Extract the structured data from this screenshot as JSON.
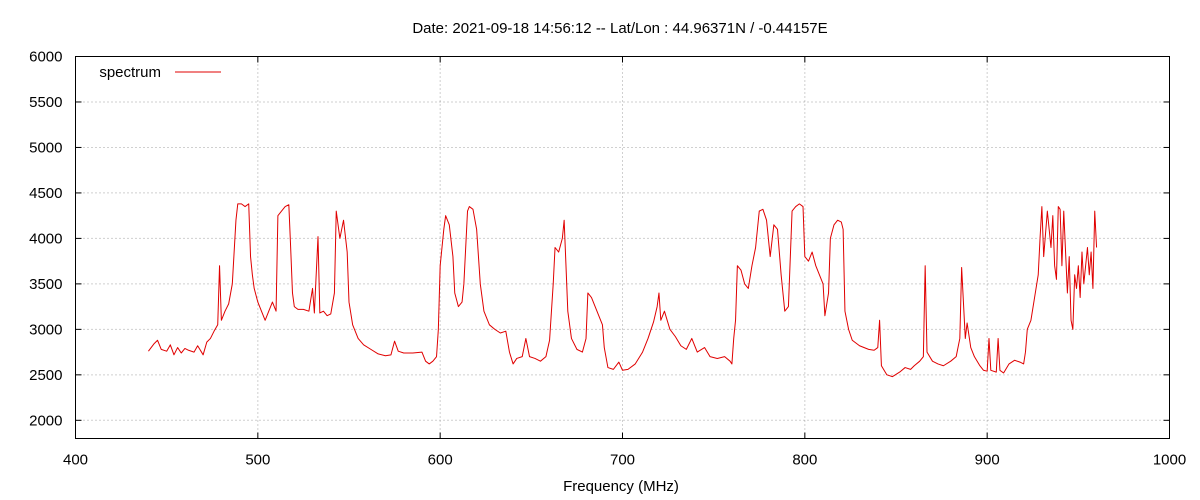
{
  "chart_data": {
    "type": "line",
    "title": "Date: 2021-09-18 14:56:12  --  Lat/Lon : 44.96371N / -0.44157E",
    "xlabel": "Frequency (MHz)",
    "ylabel": "",
    "xlim": [
      400,
      1000
    ],
    "ylim": [
      1800,
      6000
    ],
    "x_ticks": [
      400,
      500,
      600,
      700,
      800,
      900,
      1000
    ],
    "y_ticks": [
      2000,
      2500,
      3000,
      3500,
      4000,
      4500,
      5000,
      5500,
      6000
    ],
    "grid": true,
    "legend_position": "top-left",
    "series": [
      {
        "name": "spectrum",
        "color": "#e00000",
        "points": [
          [
            440,
            2760
          ],
          [
            443,
            2840
          ],
          [
            445,
            2880
          ],
          [
            447,
            2780
          ],
          [
            450,
            2760
          ],
          [
            452,
            2830
          ],
          [
            454,
            2720
          ],
          [
            456,
            2800
          ],
          [
            458,
            2740
          ],
          [
            460,
            2790
          ],
          [
            462,
            2770
          ],
          [
            465,
            2750
          ],
          [
            467,
            2820
          ],
          [
            470,
            2720
          ],
          [
            472,
            2860
          ],
          [
            474,
            2900
          ],
          [
            476,
            2980
          ],
          [
            478,
            3050
          ],
          [
            479,
            3700
          ],
          [
            480,
            3100
          ],
          [
            482,
            3200
          ],
          [
            484,
            3280
          ],
          [
            486,
            3500
          ],
          [
            488,
            4200
          ],
          [
            489,
            4380
          ],
          [
            491,
            4380
          ],
          [
            493,
            4350
          ],
          [
            495,
            4380
          ],
          [
            496,
            3800
          ],
          [
            497,
            3600
          ],
          [
            498,
            3450
          ],
          [
            500,
            3300
          ],
          [
            502,
            3200
          ],
          [
            504,
            3100
          ],
          [
            506,
            3200
          ],
          [
            508,
            3300
          ],
          [
            510,
            3200
          ],
          [
            511,
            4250
          ],
          [
            513,
            4300
          ],
          [
            515,
            4350
          ],
          [
            517,
            4370
          ],
          [
            518,
            3900
          ],
          [
            519,
            3400
          ],
          [
            520,
            3250
          ],
          [
            522,
            3220
          ],
          [
            525,
            3220
          ],
          [
            528,
            3200
          ],
          [
            530,
            3450
          ],
          [
            531,
            3180
          ],
          [
            533,
            4020
          ],
          [
            534,
            3180
          ],
          [
            536,
            3200
          ],
          [
            538,
            3150
          ],
          [
            540,
            3170
          ],
          [
            542,
            3400
          ],
          [
            543,
            4300
          ],
          [
            545,
            4000
          ],
          [
            547,
            4200
          ],
          [
            549,
            3850
          ],
          [
            550,
            3300
          ],
          [
            552,
            3050
          ],
          [
            555,
            2900
          ],
          [
            558,
            2830
          ],
          [
            562,
            2780
          ],
          [
            566,
            2730
          ],
          [
            570,
            2710
          ],
          [
            573,
            2720
          ],
          [
            575,
            2870
          ],
          [
            577,
            2760
          ],
          [
            580,
            2740
          ],
          [
            585,
            2740
          ],
          [
            590,
            2750
          ],
          [
            592,
            2650
          ],
          [
            594,
            2620
          ],
          [
            596,
            2650
          ],
          [
            598,
            2700
          ],
          [
            599,
            3000
          ],
          [
            600,
            3700
          ],
          [
            601,
            3900
          ],
          [
            602,
            4100
          ],
          [
            603,
            4250
          ],
          [
            605,
            4150
          ],
          [
            607,
            3800
          ],
          [
            608,
            3400
          ],
          [
            610,
            3250
          ],
          [
            612,
            3300
          ],
          [
            613,
            3500
          ],
          [
            615,
            4300
          ],
          [
            616,
            4350
          ],
          [
            618,
            4320
          ],
          [
            620,
            4100
          ],
          [
            622,
            3500
          ],
          [
            624,
            3200
          ],
          [
            627,
            3050
          ],
          [
            630,
            3000
          ],
          [
            633,
            2960
          ],
          [
            636,
            2980
          ],
          [
            638,
            2750
          ],
          [
            640,
            2620
          ],
          [
            642,
            2680
          ],
          [
            645,
            2700
          ],
          [
            647,
            2900
          ],
          [
            649,
            2700
          ],
          [
            652,
            2680
          ],
          [
            655,
            2650
          ],
          [
            658,
            2700
          ],
          [
            660,
            2880
          ],
          [
            662,
            3500
          ],
          [
            663,
            3900
          ],
          [
            665,
            3850
          ],
          [
            667,
            4000
          ],
          [
            668,
            4200
          ],
          [
            669,
            3700
          ],
          [
            670,
            3200
          ],
          [
            672,
            2900
          ],
          [
            675,
            2780
          ],
          [
            678,
            2750
          ],
          [
            680,
            2900
          ],
          [
            681,
            3400
          ],
          [
            683,
            3350
          ],
          [
            686,
            3200
          ],
          [
            689,
            3050
          ],
          [
            690,
            2800
          ],
          [
            692,
            2580
          ],
          [
            695,
            2560
          ],
          [
            698,
            2640
          ],
          [
            700,
            2550
          ],
          [
            703,
            2560
          ],
          [
            707,
            2620
          ],
          [
            711,
            2750
          ],
          [
            714,
            2900
          ],
          [
            717,
            3080
          ],
          [
            719,
            3250
          ],
          [
            720,
            3400
          ],
          [
            721,
            3100
          ],
          [
            723,
            3200
          ],
          [
            726,
            3000
          ],
          [
            729,
            2920
          ],
          [
            732,
            2820
          ],
          [
            735,
            2780
          ],
          [
            738,
            2900
          ],
          [
            741,
            2750
          ],
          [
            745,
            2800
          ],
          [
            748,
            2700
          ],
          [
            752,
            2680
          ],
          [
            756,
            2700
          ],
          [
            759,
            2650
          ],
          [
            760,
            2620
          ],
          [
            761,
            2900
          ],
          [
            762,
            3100
          ],
          [
            763,
            3700
          ],
          [
            765,
            3650
          ],
          [
            767,
            3500
          ],
          [
            769,
            3450
          ],
          [
            771,
            3700
          ],
          [
            773,
            3900
          ],
          [
            775,
            4300
          ],
          [
            777,
            4320
          ],
          [
            779,
            4200
          ],
          [
            781,
            3800
          ],
          [
            783,
            4150
          ],
          [
            785,
            4100
          ],
          [
            787,
            3600
          ],
          [
            789,
            3200
          ],
          [
            791,
            3250
          ],
          [
            793,
            4300
          ],
          [
            795,
            4350
          ],
          [
            797,
            4380
          ],
          [
            799,
            4350
          ],
          [
            800,
            3800
          ],
          [
            802,
            3750
          ],
          [
            804,
            3850
          ],
          [
            806,
            3700
          ],
          [
            808,
            3600
          ],
          [
            810,
            3500
          ],
          [
            811,
            3150
          ],
          [
            813,
            3400
          ],
          [
            814,
            4000
          ],
          [
            816,
            4150
          ],
          [
            818,
            4200
          ],
          [
            820,
            4180
          ],
          [
            821,
            4100
          ],
          [
            822,
            3200
          ],
          [
            824,
            3000
          ],
          [
            826,
            2880
          ],
          [
            830,
            2820
          ],
          [
            835,
            2780
          ],
          [
            838,
            2770
          ],
          [
            840,
            2800
          ],
          [
            841,
            3100
          ],
          [
            842,
            2600
          ],
          [
            845,
            2500
          ],
          [
            848,
            2480
          ],
          [
            852,
            2530
          ],
          [
            855,
            2580
          ],
          [
            858,
            2560
          ],
          [
            860,
            2600
          ],
          [
            863,
            2650
          ],
          [
            865,
            2700
          ],
          [
            866,
            3700
          ],
          [
            867,
            2750
          ],
          [
            870,
            2650
          ],
          [
            873,
            2620
          ],
          [
            876,
            2600
          ],
          [
            880,
            2650
          ],
          [
            883,
            2700
          ],
          [
            885,
            2900
          ],
          [
            886,
            3680
          ],
          [
            888,
            2900
          ],
          [
            889,
            3070
          ],
          [
            891,
            2800
          ],
          [
            893,
            2700
          ],
          [
            896,
            2600
          ],
          [
            898,
            2550
          ],
          [
            900,
            2540
          ],
          [
            901,
            2900
          ],
          [
            902,
            2550
          ],
          [
            905,
            2530
          ],
          [
            906,
            2900
          ],
          [
            907,
            2550
          ],
          [
            909,
            2520
          ],
          [
            912,
            2620
          ],
          [
            915,
            2660
          ],
          [
            918,
            2640
          ],
          [
            920,
            2620
          ],
          [
            921,
            2750
          ],
          [
            922,
            3000
          ],
          [
            924,
            3100
          ],
          [
            926,
            3350
          ],
          [
            928,
            3600
          ],
          [
            929,
            4000
          ],
          [
            930,
            4350
          ],
          [
            931,
            3800
          ],
          [
            933,
            4300
          ],
          [
            934,
            4100
          ],
          [
            935,
            3900
          ],
          [
            936,
            4250
          ],
          [
            937,
            3700
          ],
          [
            938,
            3550
          ],
          [
            939,
            4350
          ],
          [
            940,
            4320
          ],
          [
            941,
            3700
          ],
          [
            942,
            4300
          ],
          [
            944,
            3400
          ],
          [
            945,
            3800
          ],
          [
            946,
            3100
          ],
          [
            947,
            3000
          ],
          [
            948,
            3600
          ],
          [
            949,
            3450
          ],
          [
            950,
            3700
          ],
          [
            951,
            3350
          ],
          [
            952,
            3850
          ],
          [
            953,
            3500
          ],
          [
            954,
            3700
          ],
          [
            955,
            3900
          ],
          [
            956,
            3600
          ],
          [
            957,
            3850
          ],
          [
            958,
            3450
          ],
          [
            959,
            4300
          ],
          [
            960,
            3900
          ]
        ]
      }
    ]
  }
}
